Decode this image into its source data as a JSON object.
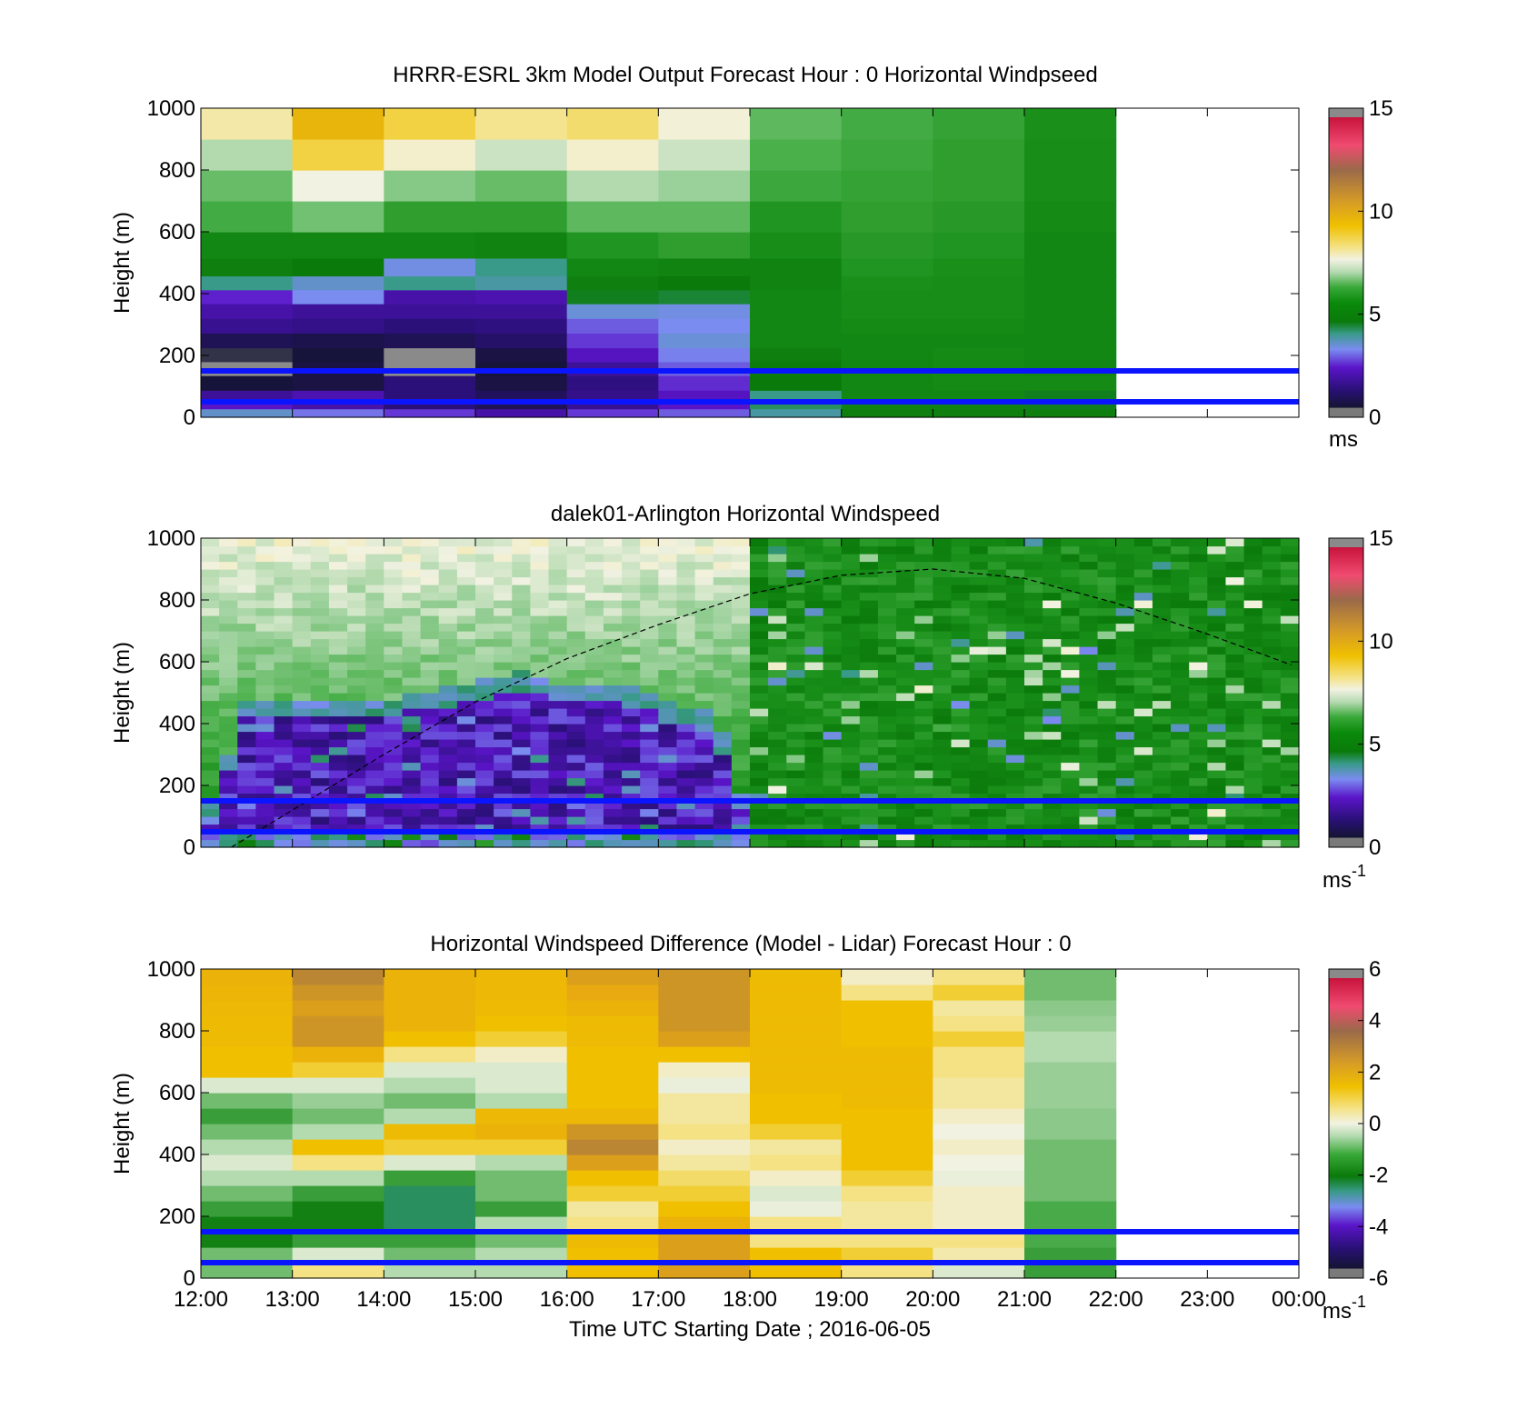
{
  "figure": {
    "xtick_labels": [
      "12:00",
      "13:00",
      "14:00",
      "15:00",
      "16:00",
      "17:00",
      "18:00",
      "19:00",
      "20:00",
      "21:00",
      "22:00",
      "23:00",
      "00:00"
    ],
    "xlabel": "Time UTC  Starting Date ; 2016-06-05",
    "ylabel": "Height (m)",
    "ytick_labels": [
      "0",
      "200",
      "400",
      "600",
      "800",
      "1000"
    ],
    "reference_lines_height_m": [
      50,
      150
    ],
    "reference_line_color": "#0a14ff"
  },
  "panels": [
    {
      "title": "HRRR-ESRL 3km Model Output   Forecast Hour : 0 Horizontal Windpseed",
      "colorbar": {
        "ticks": [
          "0",
          "5",
          "10",
          "15"
        ],
        "unit": "ms",
        "unit_sup": ""
      }
    },
    {
      "title": "dalek01-Arlington  Horizontal Windspeed",
      "colorbar": {
        "ticks": [
          "0",
          "5",
          "10",
          "15"
        ],
        "unit": "ms",
        "unit_sup": "-1"
      }
    },
    {
      "title": "Horizontal Windspeed Difference (Model - Lidar) Forecast Hour : 0",
      "colorbar": {
        "ticks": [
          "-6",
          "-4",
          "-2",
          "0",
          "2",
          "4",
          "6"
        ],
        "unit": "ms",
        "unit_sup": "-1"
      }
    }
  ],
  "chart_data": [
    {
      "type": "heatmap",
      "title": "HRRR-ESRL 3km Model Output   Forecast Hour : 0 Horizontal Windpseed",
      "xlabel": "",
      "ylabel": "Height (m)",
      "xlim": [
        "12:00",
        "00:00"
      ],
      "ylim": [
        0,
        1000
      ],
      "colorbar_range": [
        0,
        15
      ],
      "colorbar_unit": "ms",
      "x": [
        "12:00",
        "13:00",
        "14:00",
        "15:00",
        "16:00",
        "17:00",
        "18:00",
        "19:00",
        "20:00",
        "21:00"
      ],
      "y": [
        15,
        40,
        65,
        110,
        160,
        200,
        250,
        295,
        345,
        390,
        435,
        480,
        550,
        650,
        750,
        850,
        950
      ],
      "values": [
        [
          3.5,
          3.0,
          2.5,
          1.8,
          2.5,
          2.8,
          3.8,
          4.8,
          4.8,
          4.8
        ],
        [
          2.2,
          1.8,
          1.2,
          0.8,
          1.5,
          2.2,
          4.2,
          4.9,
          4.9,
          4.5
        ],
        [
          1.6,
          1.9,
          1.2,
          0.9,
          1.4,
          2.1,
          4.0,
          5.0,
          5.0,
          4.5
        ],
        [
          0.5,
          0.6,
          1.2,
          0.6,
          1.3,
          2.4,
          4.6,
          5.0,
          5.1,
          5.1
        ],
        [
          0.0,
          0.6,
          0.0,
          0.5,
          1.6,
          2.8,
          4.7,
          5.0,
          5.1,
          5.0
        ],
        [
          0.3,
          0.5,
          0.0,
          0.6,
          2.1,
          3.1,
          4.8,
          5.0,
          5.1,
          5.0
        ],
        [
          0.8,
          0.7,
          0.8,
          1.0,
          2.5,
          3.4,
          5.0,
          5.0,
          5.0,
          5.0
        ],
        [
          1.5,
          1.4,
          1.2,
          1.3,
          2.8,
          3.2,
          5.0,
          5.1,
          5.1,
          5.0
        ],
        [
          1.8,
          1.6,
          1.6,
          1.6,
          3.4,
          3.3,
          5.0,
          5.2,
          5.2,
          5.0
        ],
        [
          2.3,
          3.2,
          1.8,
          1.9,
          4.5,
          4.4,
          5.0,
          5.2,
          5.2,
          5.0
        ],
        [
          4.0,
          3.5,
          4.0,
          3.8,
          4.8,
          4.6,
          4.9,
          5.3,
          5.2,
          5.0
        ],
        [
          4.8,
          4.6,
          3.3,
          4.0,
          5.0,
          4.9,
          4.9,
          5.4,
          5.3,
          5.0
        ],
        [
          5.0,
          5.0,
          5.0,
          4.9,
          5.4,
          5.6,
          5.2,
          5.5,
          5.4,
          5.0
        ],
        [
          5.9,
          6.4,
          5.6,
          5.6,
          6.2,
          6.2,
          5.4,
          5.6,
          5.5,
          5.1
        ],
        [
          6.3,
          7.5,
          6.6,
          6.3,
          7.0,
          6.8,
          5.8,
          5.7,
          5.6,
          5.2
        ],
        [
          7.0,
          8.9,
          7.7,
          7.2,
          7.7,
          7.2,
          6.0,
          5.8,
          5.6,
          5.2
        ],
        [
          8.0,
          9.8,
          8.9,
          8.2,
          8.5,
          7.6,
          6.2,
          5.9,
          5.7,
          5.3
        ]
      ]
    },
    {
      "type": "heatmap",
      "title": "dalek01-Arlington  Horizontal Windspeed",
      "xlabel": "",
      "ylabel": "Height (m)",
      "xlim": [
        "12:00",
        "00:00"
      ],
      "ylim": [
        0,
        1000
      ],
      "colorbar_range": [
        0,
        15
      ],
      "colorbar_unit": "ms-1",
      "x_range": [
        "12:00",
        "23:55"
      ],
      "blue_layer_top_m": [
        0,
        420,
        420,
        420,
        420,
        450,
        480,
        505,
        470,
        470,
        430,
        380,
        300,
        0
      ],
      "blue_layer_top_times": [
        "12:00",
        "12:30",
        "13:00",
        "13:30",
        "14:00",
        "14:30",
        "15:00",
        "15:30",
        "16:00",
        "16:30",
        "17:00",
        "17:30",
        "17:45",
        "18:00"
      ],
      "series": [
        {
          "name": "",
          "type": "line",
          "style": "dashed",
          "x": [
            "12:20",
            "13:00",
            "14:00",
            "15:00",
            "16:00",
            "17:00",
            "18:00",
            "19:00",
            "20:00",
            "21:00",
            "22:00",
            "23:00",
            "23:55"
          ],
          "y": [
            0,
            120,
            300,
            470,
            610,
            720,
            820,
            880,
            900,
            870,
            790,
            690,
            590
          ]
        }
      ]
    },
    {
      "type": "heatmap",
      "title": "Horizontal Windspeed Difference (Model - Lidar) Forecast Hour : 0",
      "xlabel": "Time UTC  Starting Date ; 2016-06-05",
      "ylabel": "Height (m)",
      "xlim": [
        "12:00",
        "00:00"
      ],
      "ylim": [
        0,
        1000
      ],
      "colorbar_range": [
        -6,
        6
      ],
      "colorbar_unit": "ms-1",
      "x": [
        "12:00",
        "13:00",
        "14:00",
        "15:00",
        "16:00",
        "17:00",
        "18:00",
        "19:00",
        "20:00",
        "21:00"
      ],
      "y": [
        25,
        75,
        125,
        175,
        225,
        275,
        325,
        375,
        425,
        475,
        525,
        575,
        625,
        675,
        725,
        775,
        825,
        875,
        925,
        975
      ],
      "values": [
        [
          -1.5,
          0.5,
          -1.0,
          -1.0,
          1.0,
          2.0,
          1.0,
          0.5,
          -0.5,
          -2.0
        ],
        [
          -1.5,
          -0.5,
          -1.5,
          -1.0,
          1.0,
          2.0,
          1.0,
          0.8,
          0.2,
          -2.0
        ],
        [
          -2.5,
          -2.0,
          -2.0,
          -1.5,
          1.2,
          2.0,
          0.5,
          0.5,
          0.5,
          -1.8
        ],
        [
          -2.5,
          -2.5,
          -3.0,
          -1.0,
          0.5,
          1.5,
          0.5,
          0.3,
          0.0,
          -1.8
        ],
        [
          -2.0,
          -2.5,
          -3.0,
          -2.0,
          0.3,
          1.0,
          -0.3,
          0.3,
          0.0,
          -1.8
        ],
        [
          -1.5,
          -2.0,
          -3.0,
          -1.5,
          0.8,
          0.8,
          -0.5,
          0.5,
          0.0,
          -1.5
        ],
        [
          -1.0,
          -1.0,
          -2.0,
          -1.5,
          1.0,
          0.6,
          0.0,
          0.8,
          -0.3,
          -1.5
        ],
        [
          -0.5,
          0.5,
          -0.5,
          -1.0,
          2.0,
          0.3,
          0.5,
          1.0,
          -0.2,
          -1.5
        ],
        [
          -1.0,
          1.0,
          0.8,
          0.8,
          2.5,
          0.0,
          0.3,
          1.0,
          0.0,
          -1.5
        ],
        [
          -1.5,
          -1.0,
          1.2,
          1.5,
          2.2,
          0.5,
          0.8,
          1.0,
          -0.2,
          -1.3
        ],
        [
          -2.0,
          -1.5,
          -1.0,
          1.3,
          1.3,
          0.3,
          1.0,
          1.0,
          0.0,
          -1.3
        ],
        [
          -1.5,
          -1.2,
          -1.5,
          -1.0,
          1.0,
          0.3,
          1.0,
          1.2,
          0.3,
          -1.2
        ],
        [
          -0.5,
          -0.5,
          -1.0,
          -0.5,
          1.0,
          -0.3,
          1.2,
          1.2,
          0.3,
          -1.2
        ],
        [
          1.0,
          0.8,
          -0.5,
          -0.5,
          1.0,
          0.0,
          1.2,
          1.2,
          0.5,
          -1.2
        ],
        [
          1.0,
          1.5,
          0.5,
          0.0,
          1.0,
          1.0,
          1.2,
          1.2,
          0.5,
          -1.0
        ],
        [
          1.2,
          2.2,
          1.0,
          0.8,
          1.2,
          2.0,
          1.2,
          1.0,
          0.8,
          -1.0
        ],
        [
          1.2,
          2.2,
          1.5,
          1.0,
          1.2,
          2.2,
          1.2,
          1.0,
          0.5,
          -1.2
        ],
        [
          1.3,
          2.0,
          1.5,
          1.2,
          1.5,
          2.2,
          1.2,
          1.0,
          0.3,
          -1.3
        ],
        [
          1.4,
          2.2,
          1.5,
          1.3,
          1.8,
          2.2,
          1.2,
          0.5,
          0.8,
          -1.5
        ],
        [
          1.5,
          2.5,
          1.5,
          1.3,
          2.0,
          2.2,
          1.2,
          0.0,
          0.5,
          -1.5
        ]
      ]
    }
  ]
}
